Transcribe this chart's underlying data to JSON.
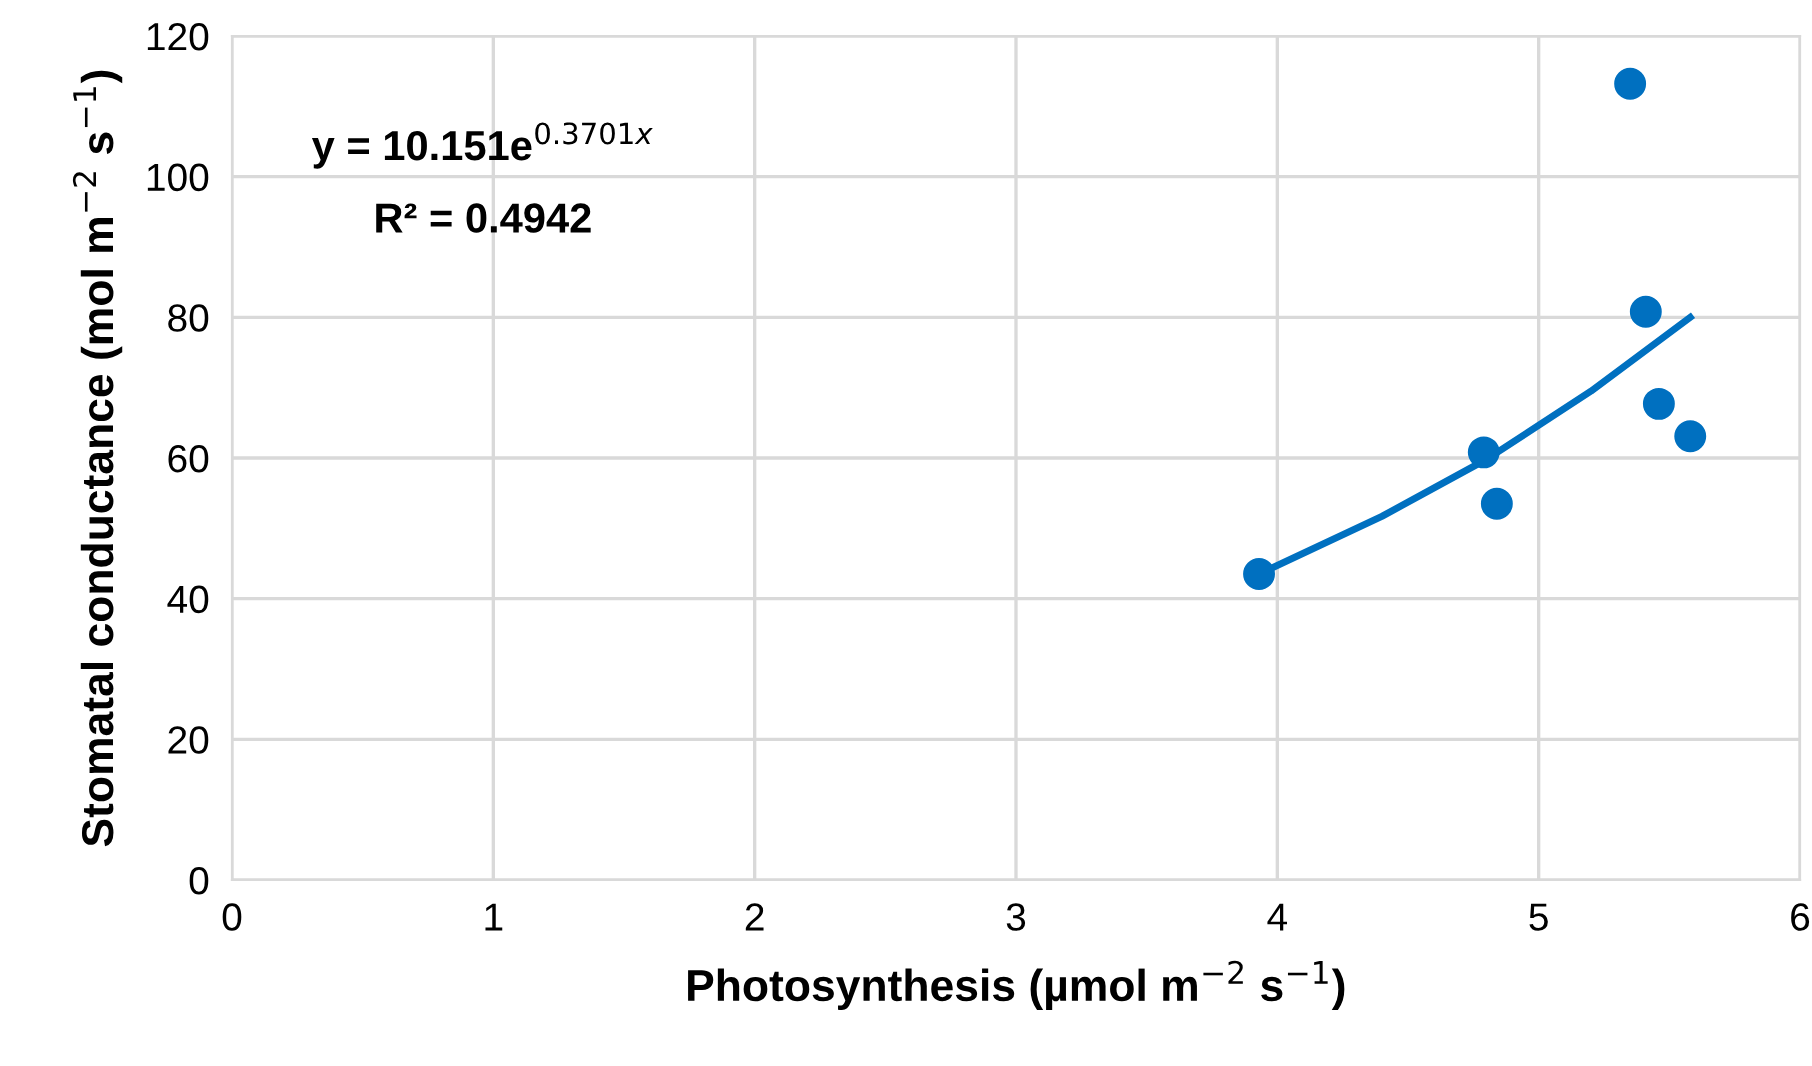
{
  "chart_data": {
    "type": "scatter",
    "xlabel": "Photosynthesis (µmol m$^{−2}$ s$^{−1}$)",
    "ylabel": "Stomatal conductance (mol m$^{−2}$ s$^{−1}$)",
    "xlim": [
      0,
      6
    ],
    "xticks": [
      0,
      1,
      2,
      3,
      4,
      5,
      6
    ],
    "ylim": [
      0,
      120
    ],
    "yticks": [
      0,
      20,
      40,
      60,
      80,
      100,
      120
    ],
    "grid": true,
    "annotations": [
      "y = 10.151e$^{0.3701x}$",
      "R² = 0.4942"
    ],
    "series": [
      {
        "marker": "circle",
        "color": "#0070c0",
        "x": [
          3.93,
          4.79,
          4.84,
          5.35,
          5.41,
          5.46,
          5.58
        ],
        "values": [
          43.5,
          60.8,
          53.5,
          113.2,
          80.8,
          67.7,
          63.1
        ]
      },
      {
        "type": "line",
        "color": "#0070c0",
        "x": [
          3.93,
          4.4,
          4.8,
          5.2,
          5.58
        ],
        "values": [
          43.5,
          51.7,
          59.8,
          69.5,
          80.0
        ]
      }
    ]
  }
}
